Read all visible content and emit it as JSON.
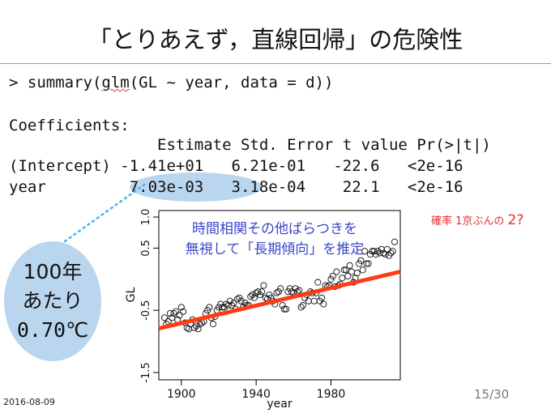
{
  "slide": {
    "title": "「とりあえず，直線回帰」の危険性",
    "command_prompt": "> ",
    "command_pre": "summary(",
    "command_fn": "glm",
    "command_post": "(GL ~ year, data = d))",
    "coef_header": "Coefficients:",
    "col_header": "                Estimate Std. Error t value Pr(>|t|)",
    "row_intercept": "(Intercept) -1.41e+01   6.21e-01   -22.6   <2e-16",
    "row_year": "year         7.03e-03   3.18e-04    22.1   <2e-16",
    "bubble_line1": "100年",
    "bubble_line2": "あたり",
    "bubble_line3": "0.70℃",
    "note_line1": "時間相関その他ばらつきを",
    "note_line2": "無視して「長期傾向」を推定",
    "prob_text": "確率 1京ぶんの ",
    "prob_value": "2?",
    "date": "2016-08-09",
    "page": "15/30"
  },
  "colors": {
    "highlight": "#b9d6ee",
    "note_text": "#3a45c8",
    "red_text": "#e03030",
    "fit_line": "#ff3b14",
    "dotted_leader": "#3fb8e6"
  },
  "chart_data": {
    "type": "scatter",
    "xlabel": "year",
    "ylabel": "GL",
    "xlim": [
      1891,
      2014
    ],
    "ylim": [
      -1.5,
      1.0
    ],
    "x_ticks": [
      1900,
      1940,
      1980
    ],
    "y_ticks": [
      -1.5,
      -0.5,
      0.5,
      1.0
    ],
    "x_tick_labels": [
      "1900",
      "1940",
      "1980"
    ],
    "y_tick_labels": [
      "-1.5",
      "-0.5",
      "0.5",
      "1.0"
    ],
    "fit_line": {
      "x": [
        1891,
        2014
      ],
      "y": [
        -0.77,
        0.1
      ]
    },
    "x": [
      1891,
      1892,
      1893,
      1894,
      1895,
      1896,
      1897,
      1898,
      1899,
      1900,
      1901,
      1902,
      1903,
      1904,
      1905,
      1906,
      1907,
      1908,
      1909,
      1910,
      1911,
      1912,
      1913,
      1914,
      1915,
      1916,
      1917,
      1918,
      1919,
      1920,
      1921,
      1922,
      1923,
      1924,
      1925,
      1926,
      1927,
      1928,
      1929,
      1930,
      1931,
      1932,
      1933,
      1934,
      1935,
      1936,
      1937,
      1938,
      1939,
      1940,
      1941,
      1942,
      1943,
      1944,
      1945,
      1946,
      1947,
      1948,
      1949,
      1950,
      1951,
      1952,
      1953,
      1954,
      1955,
      1956,
      1957,
      1958,
      1959,
      1960,
      1961,
      1962,
      1963,
      1964,
      1965,
      1966,
      1967,
      1968,
      1969,
      1970,
      1971,
      1972,
      1973,
      1974,
      1975,
      1976,
      1977,
      1978,
      1979,
      1980,
      1981,
      1982,
      1983,
      1984,
      1985,
      1986,
      1987,
      1988,
      1989,
      1990,
      1991,
      1992,
      1993,
      1994,
      1995,
      1996,
      1997,
      1998,
      1999,
      2000,
      2001,
      2002,
      2003,
      2004,
      2005,
      2006,
      2007,
      2008,
      2009,
      2010,
      2011,
      2012,
      2013,
      2014
    ],
    "y": [
      -0.62,
      -0.72,
      -0.68,
      -0.55,
      -0.62,
      -0.55,
      -0.52,
      -0.65,
      -0.58,
      -0.45,
      -0.52,
      -0.7,
      -0.78,
      -0.8,
      -0.72,
      -0.65,
      -0.78,
      -0.75,
      -0.8,
      -0.72,
      -0.7,
      -0.68,
      -0.55,
      -0.5,
      -0.45,
      -0.62,
      -0.72,
      -0.6,
      -0.5,
      -0.45,
      -0.4,
      -0.45,
      -0.45,
      -0.4,
      -0.42,
      -0.35,
      -0.42,
      -0.38,
      -0.48,
      -0.32,
      -0.3,
      -0.35,
      -0.45,
      -0.38,
      -0.42,
      -0.42,
      -0.28,
      -0.25,
      -0.3,
      -0.22,
      -0.2,
      -0.25,
      -0.2,
      -0.1,
      -0.3,
      -0.32,
      -0.25,
      -0.3,
      -0.35,
      -0.4,
      -0.22,
      -0.2,
      -0.15,
      -0.42,
      -0.48,
      -0.48,
      -0.2,
      -0.15,
      -0.2,
      -0.22,
      -0.15,
      -0.2,
      -0.18,
      -0.45,
      -0.42,
      -0.3,
      -0.25,
      -0.35,
      -0.2,
      -0.22,
      -0.35,
      -0.22,
      -0.05,
      -0.35,
      -0.3,
      -0.4,
      -0.1,
      -0.12,
      -0.1,
      0.0,
      0.05,
      -0.12,
      0.12,
      -0.1,
      -0.08,
      0.02,
      0.15,
      0.15,
      0.05,
      0.22,
      0.12,
      -0.05,
      0.02,
      0.1,
      0.25,
      0.3,
      0.15,
      0.45,
      0.25,
      0.25,
      0.4,
      0.45,
      0.45,
      0.4,
      0.45,
      0.42,
      0.48,
      0.42,
      0.4,
      0.48,
      0.38,
      0.42,
      0.45,
      0.6
    ]
  }
}
